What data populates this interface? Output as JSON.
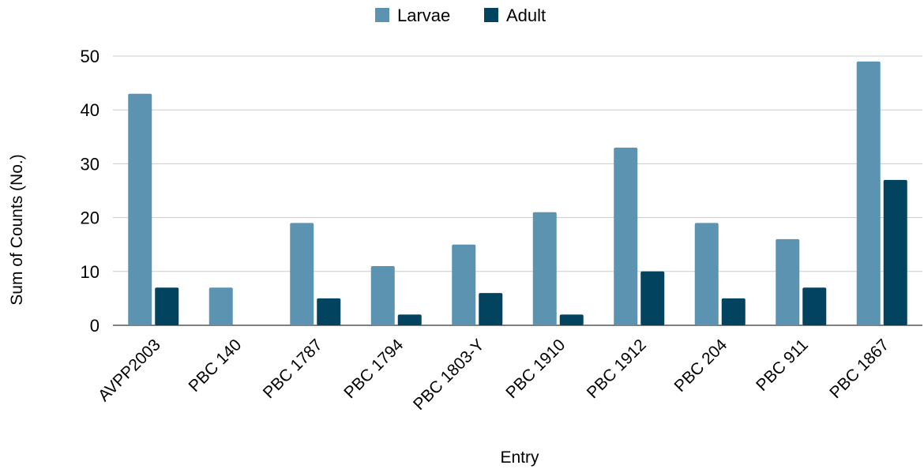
{
  "chart_data": {
    "type": "bar",
    "categories": [
      "AVPP2003",
      "PBC 140",
      "PBC 1787",
      "PBC 1794",
      "PBC 1803-Y",
      "PBC 1910",
      "PBC 1912",
      "PBC 204",
      "PBC 911",
      "PBC 1867"
    ],
    "series": [
      {
        "name": "Larvae",
        "color": "#5b93b1",
        "values": [
          43,
          7,
          19,
          11,
          15,
          21,
          33,
          19,
          16,
          49
        ]
      },
      {
        "name": "Adult",
        "color": "#02445f",
        "values": [
          7,
          0,
          5,
          2,
          6,
          2,
          10,
          5,
          7,
          27
        ]
      }
    ],
    "xlabel": "Entry",
    "ylabel": "Sum of Counts (No.)",
    "ylim": [
      0,
      50
    ],
    "yticks": [
      0,
      10,
      20,
      30,
      40,
      50
    ],
    "grid": true,
    "legend": "top-center"
  }
}
